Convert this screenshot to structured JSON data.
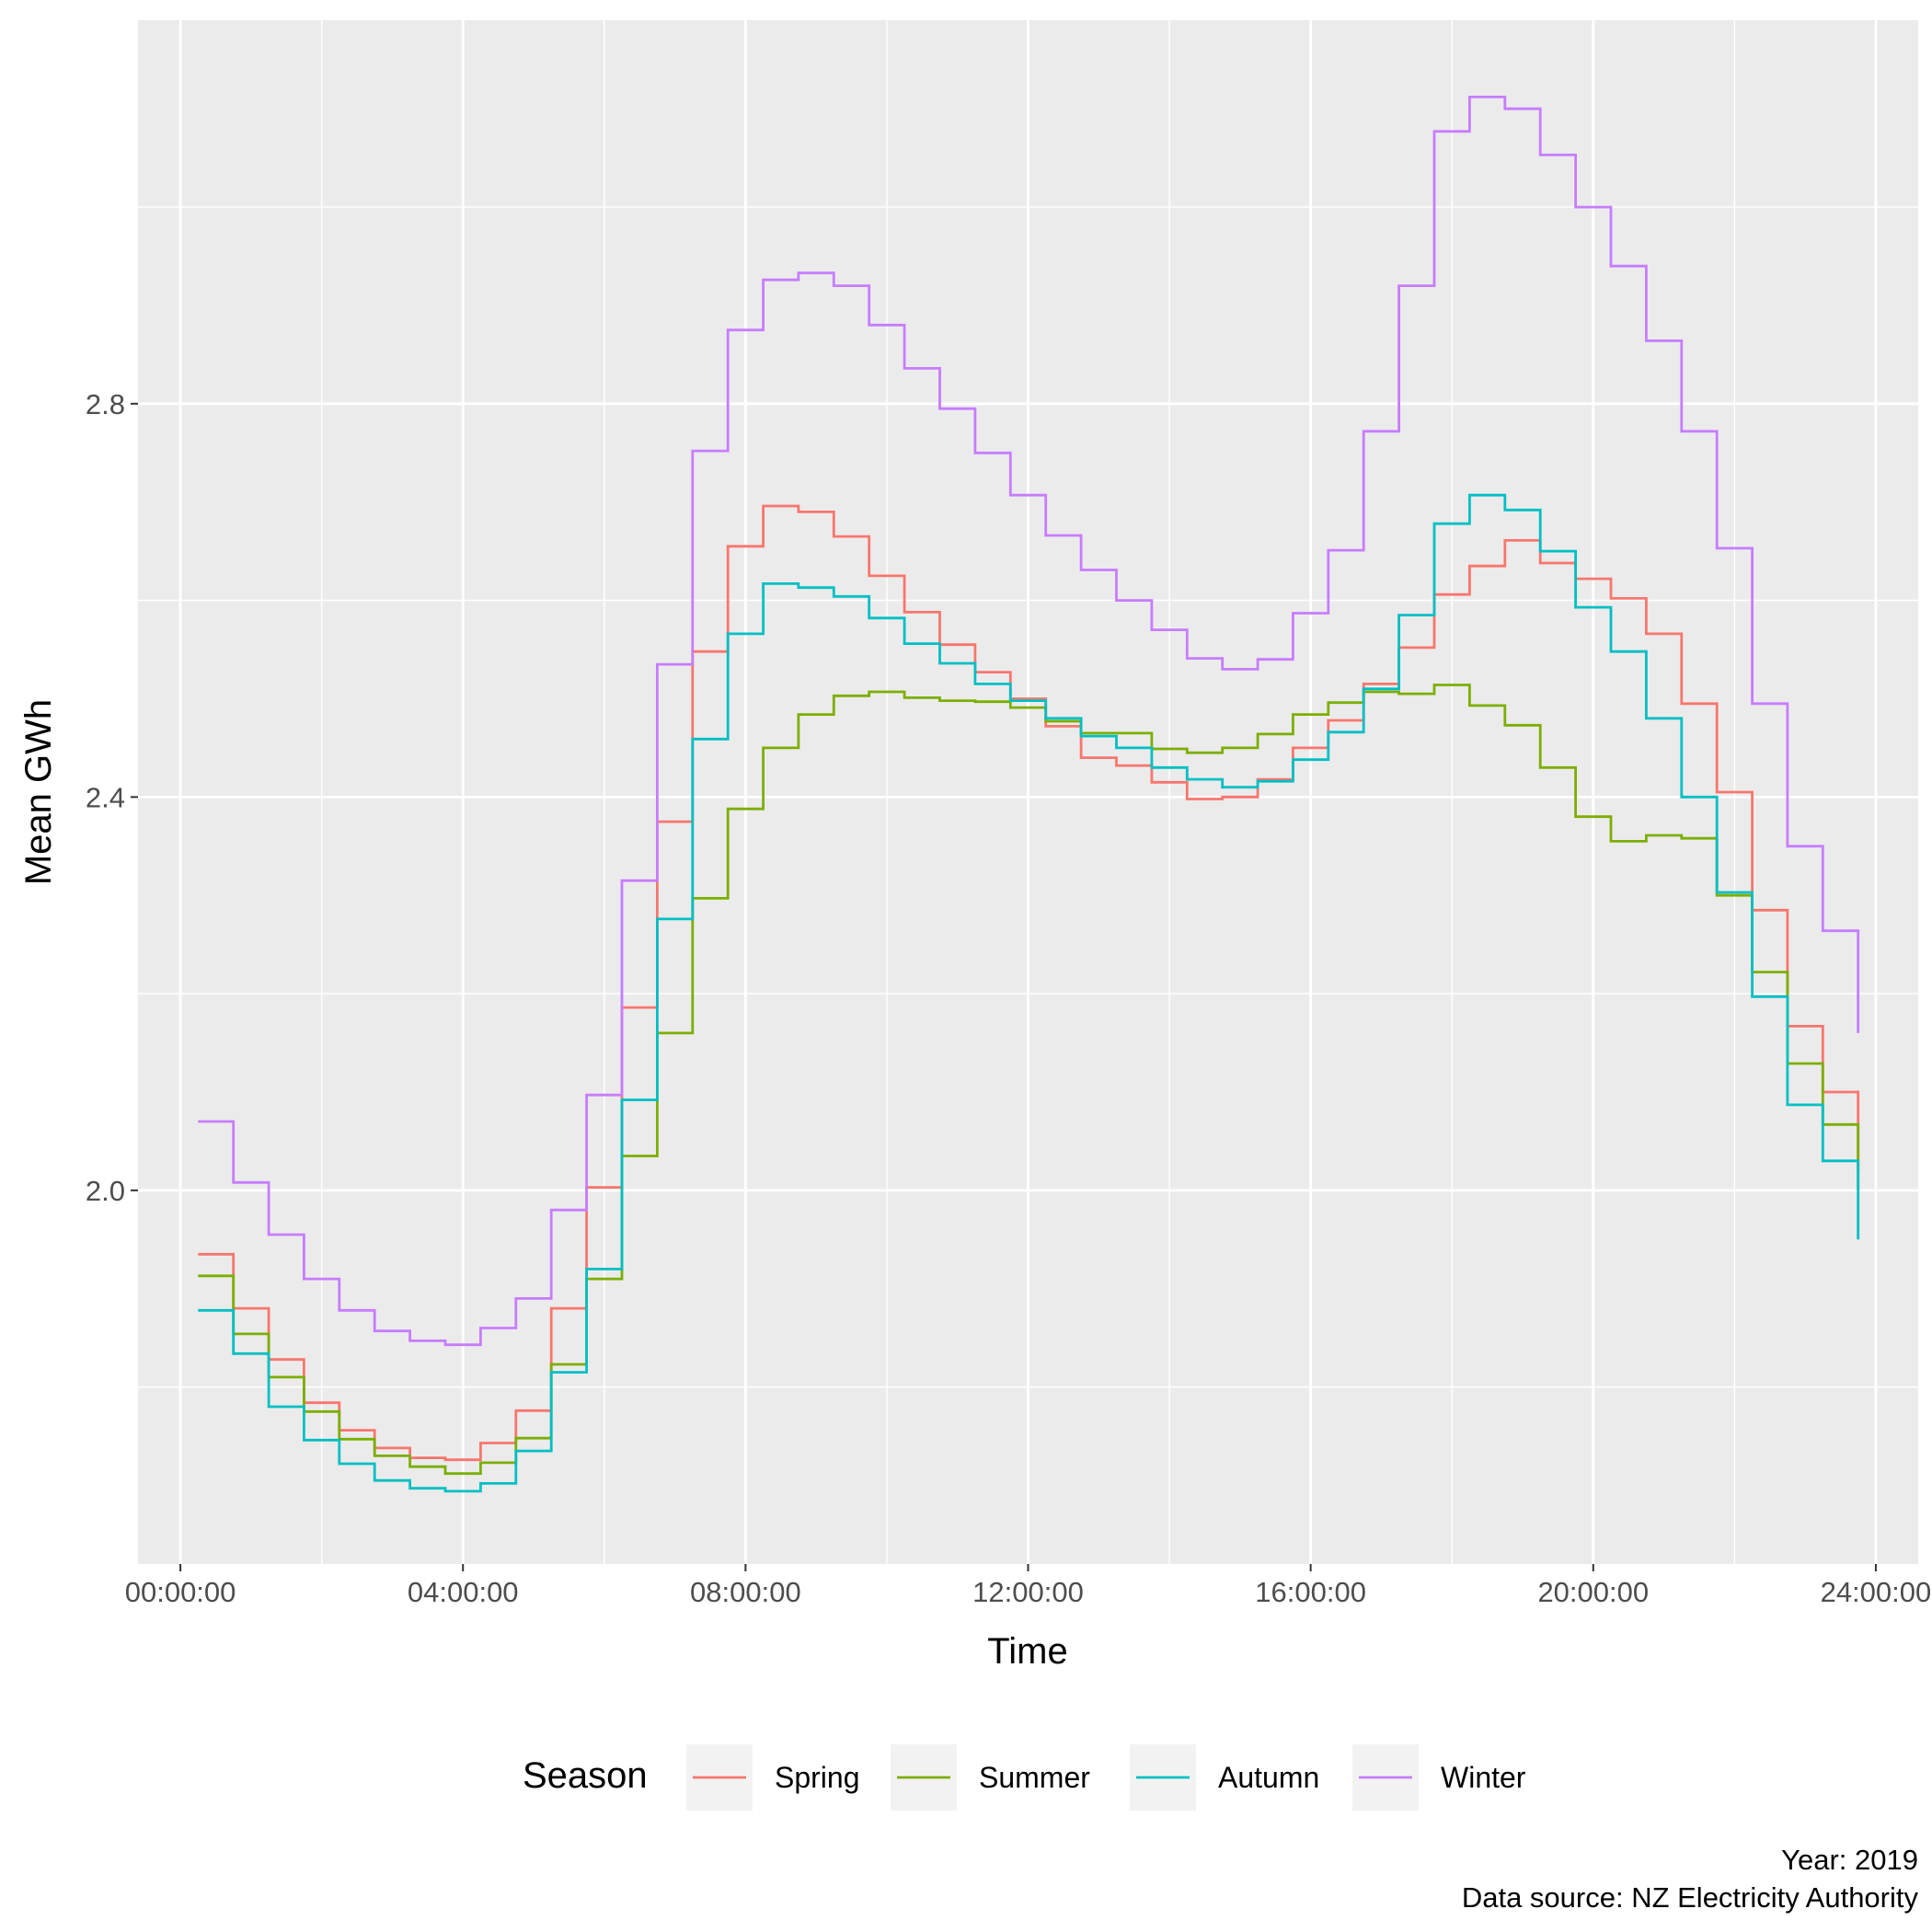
{
  "chart_data": {
    "type": "line",
    "step": true,
    "xlabel": "Time",
    "ylabel": "Mean GWh",
    "x_unit": "hours",
    "xlim": [
      -0.6,
      24.6
    ],
    "ylim": [
      1.62,
      3.19
    ],
    "x_ticks": [
      0,
      4,
      8,
      12,
      16,
      20,
      24
    ],
    "x_tick_labels": [
      "00:00:00",
      "04:00:00",
      "08:00:00",
      "12:00:00",
      "16:00:00",
      "20:00:00",
      "24:00:00"
    ],
    "y_ticks": [
      2.0,
      2.4,
      2.8
    ],
    "y_tick_labels": [
      "2.0",
      "2.4",
      "2.8"
    ],
    "y_minor_ticks": [
      1.8,
      2.2,
      2.6,
      3.0
    ],
    "grid": true,
    "legend_position": "bottom",
    "legend_title": "Season",
    "caption_lines": [
      "Year: 2019",
      "Data source: NZ Electricity Authority"
    ],
    "x": [
      0.25,
      0.75,
      1.25,
      1.75,
      2.25,
      2.75,
      3.25,
      3.75,
      4.25,
      4.75,
      5.25,
      5.75,
      6.25,
      6.75,
      7.25,
      7.75,
      8.25,
      8.75,
      9.25,
      9.75,
      10.25,
      10.75,
      11.25,
      11.75,
      12.25,
      12.75,
      13.25,
      13.75,
      14.25,
      14.75,
      15.25,
      15.75,
      16.25,
      16.75,
      17.25,
      17.75,
      18.25,
      18.75,
      19.25,
      19.75,
      20.25,
      20.75,
      21.25,
      21.75,
      22.25,
      22.75,
      23.25,
      23.75
    ],
    "series": [
      {
        "name": "Spring",
        "color": "#F8766D",
        "values": [
          1.935,
          1.88,
          1.828,
          1.784,
          1.756,
          1.738,
          1.728,
          1.726,
          1.743,
          1.776,
          1.88,
          2.003,
          2.186,
          2.375,
          2.548,
          2.655,
          2.696,
          2.69,
          2.665,
          2.625,
          2.588,
          2.555,
          2.527,
          2.5,
          2.472,
          2.44,
          2.432,
          2.415,
          2.398,
          2.4,
          2.418,
          2.45,
          2.478,
          2.515,
          2.552,
          2.606,
          2.635,
          2.661,
          2.638,
          2.622,
          2.602,
          2.566,
          2.495,
          2.405,
          2.285,
          2.167,
          2.1,
          2.02
        ]
      },
      {
        "name": "Summer",
        "color": "#7CAE00",
        "values": [
          1.913,
          1.854,
          1.81,
          1.775,
          1.747,
          1.73,
          1.719,
          1.712,
          1.723,
          1.748,
          1.823,
          1.91,
          2.035,
          2.16,
          2.297,
          2.388,
          2.45,
          2.484,
          2.503,
          2.507,
          2.501,
          2.498,
          2.497,
          2.491,
          2.477,
          2.465,
          2.465,
          2.449,
          2.445,
          2.45,
          2.464,
          2.484,
          2.496,
          2.507,
          2.505,
          2.514,
          2.493,
          2.473,
          2.43,
          2.38,
          2.355,
          2.361,
          2.358,
          2.3,
          2.222,
          2.129,
          2.067,
          2.0
        ]
      },
      {
        "name": "Autumn",
        "color": "#00BFC4",
        "values": [
          1.878,
          1.834,
          1.78,
          1.746,
          1.722,
          1.705,
          1.697,
          1.694,
          1.702,
          1.735,
          1.815,
          1.92,
          2.092,
          2.276,
          2.459,
          2.566,
          2.617,
          2.613,
          2.604,
          2.582,
          2.556,
          2.536,
          2.515,
          2.498,
          2.48,
          2.462,
          2.45,
          2.43,
          2.418,
          2.41,
          2.416,
          2.438,
          2.466,
          2.51,
          2.585,
          2.678,
          2.707,
          2.692,
          2.65,
          2.593,
          2.548,
          2.48,
          2.4,
          2.303,
          2.197,
          2.087,
          2.03,
          1.95
        ]
      },
      {
        "name": "Winter",
        "color": "#C77CFF",
        "values": [
          2.07,
          2.008,
          1.955,
          1.91,
          1.878,
          1.857,
          1.847,
          1.843,
          1.86,
          1.89,
          1.98,
          2.097,
          2.315,
          2.535,
          2.752,
          2.875,
          2.926,
          2.933,
          2.92,
          2.88,
          2.836,
          2.795,
          2.75,
          2.707,
          2.666,
          2.631,
          2.6,
          2.57,
          2.541,
          2.53,
          2.54,
          2.587,
          2.651,
          2.772,
          2.92,
          3.077,
          3.112,
          3.1,
          3.053,
          3.0,
          2.94,
          2.864,
          2.772,
          2.653,
          2.495,
          2.35,
          2.264,
          2.16
        ]
      }
    ]
  }
}
